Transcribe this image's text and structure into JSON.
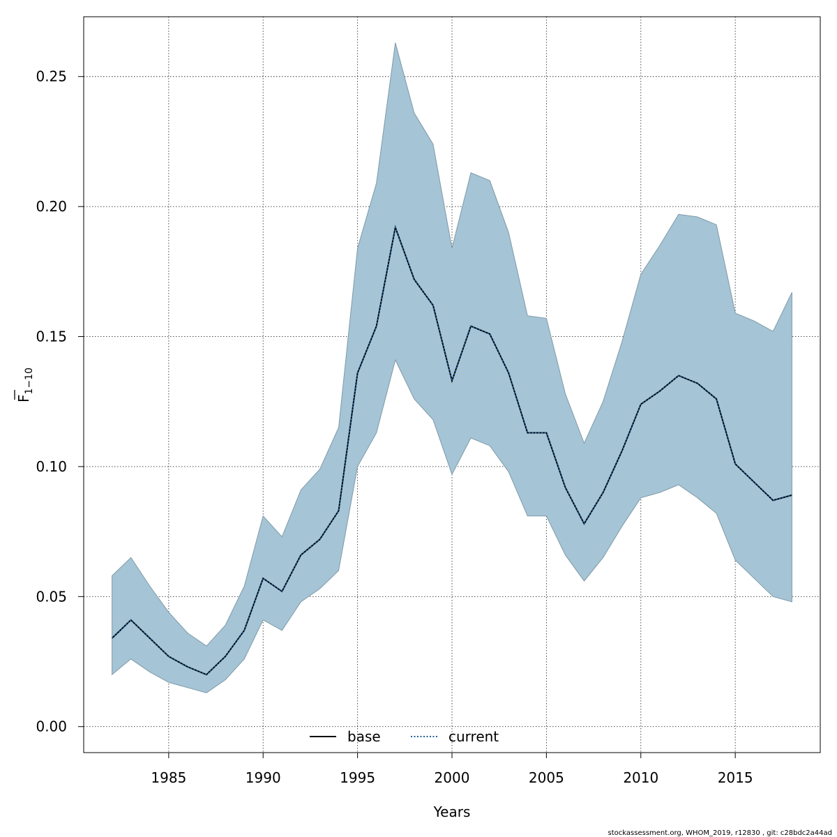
{
  "chart_data": {
    "type": "area",
    "title": "",
    "xlabel": "Years",
    "ylabel_main": "F",
    "ylabel_sub": "1−10",
    "xlim": [
      1980.5,
      2019.5
    ],
    "ylim": [
      -0.01,
      0.273
    ],
    "xticks": [
      1985,
      1990,
      1995,
      2000,
      2005,
      2010,
      2015
    ],
    "yticks": [
      0.0,
      0.05,
      0.1,
      0.15,
      0.2,
      0.25
    ],
    "ytick_labels": [
      "0.00",
      "0.05",
      "0.10",
      "0.15",
      "0.20",
      "0.25"
    ],
    "grid": true,
    "band_color": "#a5c4d5",
    "band_edge_color": "#7f9aa8",
    "x": [
      1982,
      1983,
      1984,
      1985,
      1986,
      1987,
      1988,
      1989,
      1990,
      1991,
      1992,
      1993,
      1994,
      1995,
      1996,
      1997,
      1998,
      1999,
      2000,
      2001,
      2002,
      2003,
      2004,
      2005,
      2006,
      2007,
      2008,
      2009,
      2010,
      2011,
      2012,
      2013,
      2014,
      2015,
      2016,
      2017,
      2018
    ],
    "upper": [
      0.058,
      0.065,
      0.054,
      0.044,
      0.036,
      0.031,
      0.039,
      0.054,
      0.081,
      0.073,
      0.091,
      0.099,
      0.115,
      0.184,
      0.209,
      0.263,
      0.236,
      0.224,
      0.184,
      0.213,
      0.21,
      0.19,
      0.158,
      0.157,
      0.128,
      0.109,
      0.125,
      0.148,
      0.174,
      0.185,
      0.197,
      0.196,
      0.193,
      0.159,
      0.156,
      0.152,
      0.167
    ],
    "lower": [
      0.02,
      0.026,
      0.021,
      0.017,
      0.015,
      0.013,
      0.018,
      0.026,
      0.041,
      0.037,
      0.048,
      0.053,
      0.06,
      0.1,
      0.113,
      0.141,
      0.126,
      0.118,
      0.097,
      0.111,
      0.108,
      0.098,
      0.081,
      0.081,
      0.066,
      0.056,
      0.065,
      0.077,
      0.088,
      0.09,
      0.093,
      0.088,
      0.082,
      0.064,
      0.057,
      0.05,
      0.048
    ],
    "series": [
      {
        "name": "base",
        "color": "#000000",
        "dash": "solid",
        "values": [
          0.034,
          0.041,
          0.034,
          0.027,
          0.023,
          0.02,
          0.027,
          0.037,
          0.057,
          0.052,
          0.066,
          0.072,
          0.083,
          0.136,
          0.154,
          0.192,
          0.172,
          0.162,
          0.133,
          0.154,
          0.151,
          0.136,
          0.113,
          0.113,
          0.092,
          0.078,
          0.09,
          0.106,
          0.124,
          0.129,
          0.135,
          0.132,
          0.126,
          0.101,
          0.094,
          0.087,
          0.089
        ]
      },
      {
        "name": "current",
        "color": "#1f5f9a",
        "dash": "dotted",
        "values": [
          0.034,
          0.041,
          0.034,
          0.027,
          0.023,
          0.02,
          0.027,
          0.037,
          0.057,
          0.052,
          0.066,
          0.072,
          0.083,
          0.136,
          0.154,
          0.192,
          0.172,
          0.162,
          0.133,
          0.154,
          0.151,
          0.136,
          0.113,
          0.113,
          0.092,
          0.078,
          0.09,
          0.106,
          0.124,
          0.129,
          0.135,
          0.132,
          0.126,
          0.101,
          0.094,
          0.087,
          0.089
        ]
      }
    ],
    "legend_position": "bottom-center"
  },
  "footer": {
    "credit": "stockassessment.org, WHOM_2019, r12830 , git: c28bdc2a44ad"
  }
}
